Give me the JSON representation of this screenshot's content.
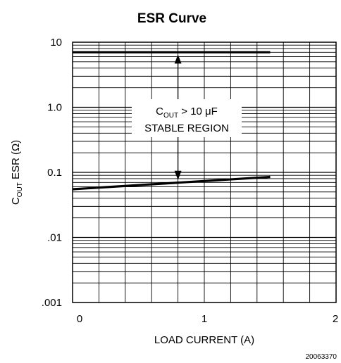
{
  "chart_data": {
    "type": "line",
    "title": "ESR Curve",
    "xlabel": "LOAD CURRENT (A)",
    "ylabel": {
      "main": "C",
      "sub": "OUT",
      "rest": " ESR (Ω)"
    },
    "x_scale": "linear",
    "y_scale": "log",
    "xlim": [
      0,
      2
    ],
    "ylim": [
      0.001,
      10
    ],
    "x_ticks": [
      0,
      1,
      2
    ],
    "x_tick_labels": [
      "0",
      "1",
      "2"
    ],
    "y_ticks": [
      10,
      1,
      0.1,
      0.01,
      0.001
    ],
    "y_tick_labels": [
      "10",
      "1.0",
      "0.1",
      ".01",
      ".001"
    ],
    "grid": true,
    "series": [
      {
        "x": [
          0,
          1.5
        ],
        "y": [
          7,
          7
        ]
      },
      {
        "x": [
          0,
          1.5
        ],
        "y": [
          0.055,
          0.085
        ]
      }
    ],
    "annotation": {
      "line1_main": "C",
      "line1_sub": "OUT",
      "line1_rest": " > 10 μF",
      "line2": "STABLE REGION",
      "arrow_x": 0.8
    },
    "figure_code": "20063370"
  }
}
